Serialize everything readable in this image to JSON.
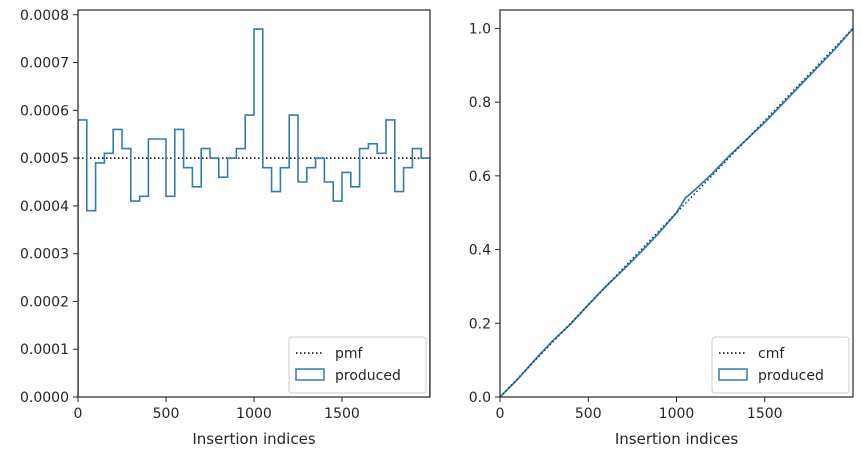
{
  "colors": {
    "step_line": "#2f7fb3",
    "cmf_line": "#0d3d5e",
    "reference_line": "#000000",
    "axes": "#262626"
  },
  "chart_data": [
    {
      "type": "histogram-step",
      "title": "",
      "xlabel": "Insertion indices",
      "ylabel": "",
      "xlim": [
        0,
        2000
      ],
      "ylim": [
        0,
        0.00081
      ],
      "xticks": [
        0,
        500,
        1000,
        1500
      ],
      "xtick_labels": [
        "0",
        "500",
        "1000",
        "1500"
      ],
      "yticks": [
        0,
        0.0001,
        0.0002,
        0.0003,
        0.0004,
        0.0005,
        0.0006,
        0.0007,
        0.0008
      ],
      "ytick_labels": [
        "0.0000",
        "0.0001",
        "0.0002",
        "0.0003",
        "0.0004",
        "0.0005",
        "0.0006",
        "0.0007",
        "0.0008"
      ],
      "bin_width": 50,
      "produced": [
        0.00058,
        0.00039,
        0.00049,
        0.00051,
        0.00056,
        0.00052,
        0.00041,
        0.00042,
        0.00054,
        0.00054,
        0.00042,
        0.00056,
        0.00048,
        0.00044,
        0.00052,
        0.0005,
        0.00046,
        0.0005,
        0.00052,
        0.00059,
        0.00077,
        0.00048,
        0.00043,
        0.00048,
        0.00059,
        0.00045,
        0.00048,
        0.0005,
        0.00045,
        0.00041,
        0.00047,
        0.00044,
        0.00052,
        0.00053,
        0.00051,
        0.00058,
        0.00043,
        0.00048,
        0.00052,
        0.0005
      ],
      "pmf_value": 0.0005,
      "legend_location": "lower right",
      "legend": [
        {
          "label": "pmf",
          "style": "dotted"
        },
        {
          "label": "produced",
          "style": "box"
        }
      ]
    },
    {
      "type": "line",
      "title": "",
      "xlabel": "Insertion indices",
      "ylabel": "",
      "xlim": [
        0,
        2000
      ],
      "ylim": [
        0,
        1.05
      ],
      "xticks": [
        0,
        500,
        1000,
        1500
      ],
      "xtick_labels": [
        "0",
        "500",
        "1000",
        "1500"
      ],
      "yticks": [
        0,
        0.2,
        0.4,
        0.6,
        0.8,
        1.0
      ],
      "ytick_labels": [
        "0.0",
        "0.2",
        "0.4",
        "0.6",
        "0.8",
        "1.0"
      ],
      "cmf": {
        "x": [
          0,
          2000
        ],
        "y": [
          0,
          1.0
        ]
      },
      "produced": {
        "x": [
          0,
          100,
          200,
          300,
          400,
          500,
          600,
          700,
          800,
          900,
          1000,
          1050,
          1100,
          1200,
          1300,
          1400,
          1500,
          1600,
          1700,
          1800,
          1900,
          2000
        ],
        "y": [
          0,
          0.048,
          0.102,
          0.153,
          0.198,
          0.25,
          0.3,
          0.346,
          0.394,
          0.445,
          0.5,
          0.54,
          0.56,
          0.605,
          0.655,
          0.7,
          0.745,
          0.795,
          0.845,
          0.895,
          0.945,
          1.0
        ]
      },
      "legend_location": "lower right",
      "legend": [
        {
          "label": "cmf",
          "style": "dotted"
        },
        {
          "label": "produced",
          "style": "box"
        }
      ]
    }
  ]
}
